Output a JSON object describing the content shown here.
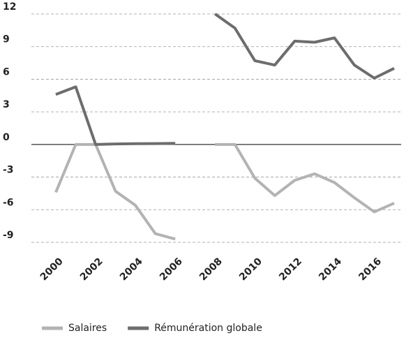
{
  "chart_data": {
    "type": "line",
    "x": [
      2000,
      2001,
      2002,
      2003,
      2004,
      2005,
      2006,
      2007,
      2008,
      2009,
      2010,
      2011,
      2012,
      2013,
      2014,
      2015,
      2016,
      2017
    ],
    "series": [
      {
        "name": "Salaires",
        "color": "#b3b3b3",
        "values": [
          -4.4,
          0,
          0,
          -4.3,
          -5.6,
          -8.2,
          -8.7,
          null,
          0,
          0,
          -3.1,
          -4.7,
          -3.3,
          -2.7,
          -3.5,
          -4.9,
          -6.2,
          -5.4
        ]
      },
      {
        "name": "Rémunération globale",
        "color": "#6d6d6d",
        "values": [
          4.6,
          5.3,
          0,
          0.05,
          0.07,
          0.08,
          0.1,
          null,
          12,
          10.7,
          7.7,
          7.3,
          9.5,
          9.4,
          9.8,
          7.3,
          6.1,
          7.0
        ]
      }
    ],
    "xlim": [
      2000,
      2017
    ],
    "xticks": [
      2000,
      2002,
      2004,
      2006,
      2008,
      2010,
      2012,
      2014,
      2016
    ],
    "ylim": [
      -9,
      12
    ],
    "yticks": [
      -9,
      -6,
      -3,
      0,
      3,
      6,
      9,
      12
    ],
    "grid": true,
    "legend": "bottom"
  }
}
